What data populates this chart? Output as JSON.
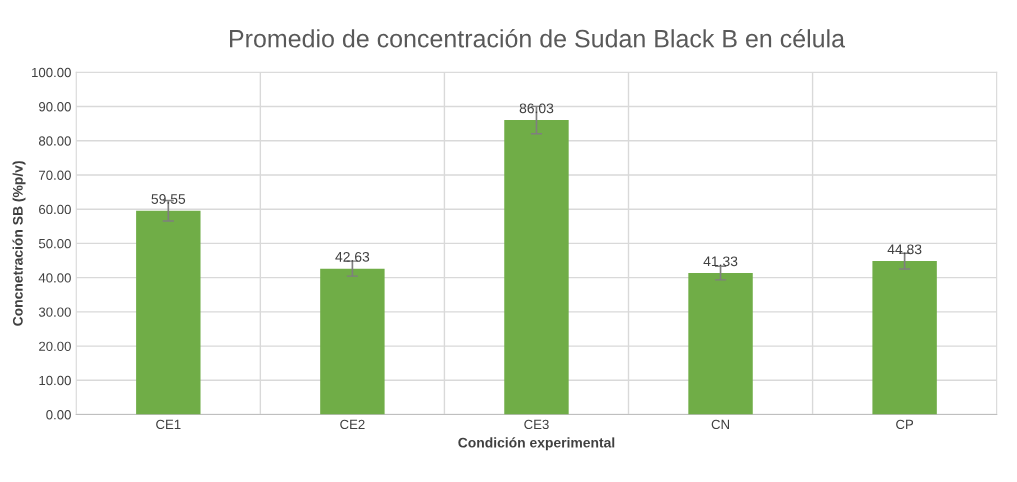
{
  "chart_data": {
    "type": "bar",
    "title": "Promedio de concentración de Sudan Black B en célula",
    "xlabel": "Condición experimental",
    "ylabel": "Concnetración SB (%p/v)",
    "categories": [
      "CE1",
      "CE2",
      "CE3",
      "CN",
      "CP"
    ],
    "values": [
      59.55,
      42.63,
      86.03,
      41.33,
      44.83
    ],
    "errors": [
      3.0,
      2.2,
      4.0,
      2.0,
      2.3
    ],
    "color": "#70ad47",
    "data_labels": true,
    "grid": true,
    "ylim": [
      0,
      100
    ],
    "yticks": [
      {
        "value": 0,
        "label": "0.00"
      },
      {
        "value": 10,
        "label": "10.00"
      },
      {
        "value": 20,
        "label": "20.00"
      },
      {
        "value": 30,
        "label": "30.00"
      },
      {
        "value": 40,
        "label": "40.00"
      },
      {
        "value": 50,
        "label": "50.00"
      },
      {
        "value": 60,
        "label": "60.00"
      },
      {
        "value": 70,
        "label": "70.00"
      },
      {
        "value": 80,
        "label": "80.00"
      },
      {
        "value": 90,
        "label": "90.00"
      },
      {
        "value": 100,
        "label": "100.00"
      }
    ]
  }
}
